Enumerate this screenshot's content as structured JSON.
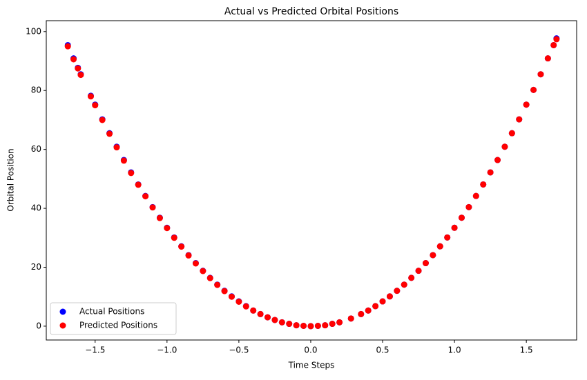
{
  "chart_data": {
    "type": "scatter",
    "title": "Actual vs Predicted Orbital Positions",
    "x_label": "Time Steps",
    "y_label": "Orbital Position",
    "x": [
      -1.69,
      -1.65,
      -1.62,
      -1.6,
      -1.53,
      -1.5,
      -1.45,
      -1.4,
      -1.35,
      -1.3,
      -1.25,
      -1.2,
      -1.15,
      -1.1,
      -1.05,
      -1.0,
      -0.95,
      -0.9,
      -0.85,
      -0.8,
      -0.75,
      -0.7,
      -0.65,
      -0.6,
      -0.55,
      -0.5,
      -0.45,
      -0.4,
      -0.35,
      -0.3,
      -0.25,
      -0.2,
      -0.15,
      -0.1,
      -0.05,
      0.0,
      0.05,
      0.1,
      0.15,
      0.2,
      0.28,
      0.35,
      0.4,
      0.45,
      0.5,
      0.55,
      0.6,
      0.65,
      0.7,
      0.75,
      0.8,
      0.85,
      0.9,
      0.95,
      1.0,
      1.05,
      1.1,
      1.15,
      1.2,
      1.25,
      1.3,
      1.35,
      1.4,
      1.45,
      1.5,
      1.55,
      1.6,
      1.65,
      1.69,
      1.71
    ],
    "series": [
      {
        "name": "Actual Positions",
        "color": "#0000ff",
        "values": [
          95.4,
          90.9,
          87.7,
          85.5,
          78.2,
          75.2,
          70.2,
          65.5,
          60.9,
          56.4,
          52.2,
          48.1,
          44.2,
          40.4,
          36.8,
          33.4,
          30.1,
          27.1,
          24.1,
          21.4,
          18.8,
          16.4,
          14.1,
          12.0,
          10.1,
          8.4,
          6.8,
          5.3,
          4.1,
          3.0,
          2.1,
          1.3,
          0.8,
          0.3,
          0.1,
          0.0,
          0.1,
          0.3,
          0.8,
          1.3,
          2.6,
          4.1,
          5.3,
          6.8,
          8.4,
          10.1,
          12.0,
          14.1,
          16.4,
          18.8,
          21.4,
          24.1,
          27.1,
          30.1,
          33.4,
          36.8,
          40.4,
          44.2,
          48.1,
          52.2,
          56.4,
          60.9,
          65.5,
          70.2,
          75.2,
          80.2,
          85.5,
          90.9,
          95.4,
          97.7
        ]
      },
      {
        "name": "Predicted Positions",
        "color": "#ff0000",
        "values": [
          95.0,
          90.6,
          87.5,
          85.3,
          78.0,
          75.0,
          70.0,
          65.3,
          60.7,
          56.2,
          52.0,
          48.0,
          44.1,
          40.3,
          36.7,
          33.3,
          30.0,
          27.0,
          24.0,
          21.3,
          18.7,
          16.3,
          14.0,
          11.9,
          10.0,
          8.3,
          6.7,
          5.3,
          4.1,
          3.0,
          2.1,
          1.3,
          0.8,
          0.3,
          0.1,
          0.0,
          0.1,
          0.3,
          0.8,
          1.3,
          2.6,
          4.1,
          5.3,
          6.8,
          8.4,
          10.1,
          12.0,
          14.1,
          16.4,
          18.8,
          21.4,
          24.1,
          27.1,
          30.1,
          33.4,
          36.8,
          40.4,
          44.2,
          48.1,
          52.2,
          56.4,
          60.9,
          65.5,
          70.2,
          75.2,
          80.2,
          85.5,
          90.9,
          95.4,
          97.4
        ]
      }
    ],
    "xlim": [
      -1.84,
      1.85
    ],
    "ylim": [
      -4.7,
      103.7
    ],
    "xticks": [
      {
        "value": -1.5,
        "label": "−1.5"
      },
      {
        "value": -1.0,
        "label": "−1.0"
      },
      {
        "value": -0.5,
        "label": "−0.5"
      },
      {
        "value": 0.0,
        "label": "0.0"
      },
      0.5,
      {
        "value": 1.0,
        "label": "1.0"
      },
      1.5
    ],
    "yticks": [
      0,
      20,
      40,
      60,
      80,
      100
    ],
    "grid": false,
    "legend": "lower left"
  }
}
